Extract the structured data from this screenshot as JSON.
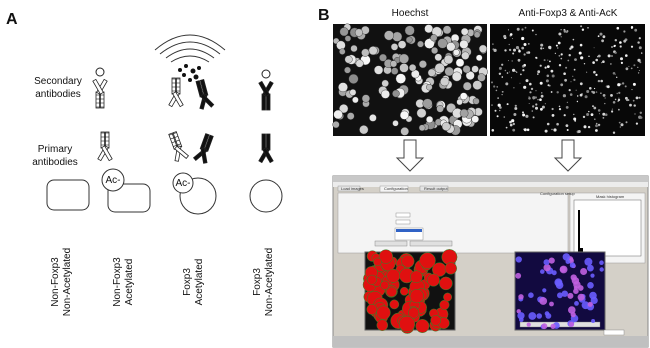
{
  "panel_a": {
    "label": "A",
    "secondary": [
      "Secondary",
      "antibodies"
    ],
    "primary": [
      "Primary",
      "antibodies"
    ],
    "ac_labels": [
      "Ac-",
      "Ac-"
    ],
    "columns": [
      [
        "Non-Foxp3",
        "Non-Acetylated"
      ],
      [
        "Non-Foxp3",
        "Acetylated"
      ],
      [
        "Foxp3",
        "Acetylated"
      ],
      [
        "Foxp3",
        "Non-Acetylated"
      ]
    ]
  },
  "panel_b": {
    "label": "B",
    "image_titles": [
      "Hoechst",
      "Anti-Foxp3 & Anti-AcK"
    ],
    "software": {
      "tabs": [
        "Load images",
        "Configuration",
        "Result output"
      ],
      "heading": "Configuration setup",
      "histogram_title": "Mask histogram"
    }
  }
}
